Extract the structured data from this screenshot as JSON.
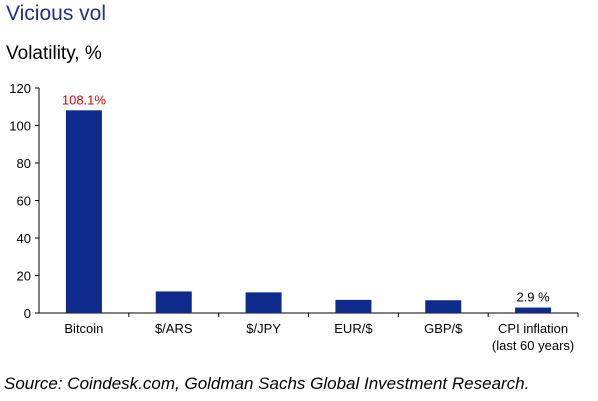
{
  "chart_data": {
    "type": "bar",
    "title": "Vicious vol",
    "ylabel": "Volatility, %",
    "categories": [
      [
        "Bitcoin"
      ],
      [
        "$/ARS"
      ],
      [
        "$/JPY"
      ],
      [
        "EUR/$"
      ],
      [
        "GBP/$"
      ],
      [
        "CPI inflation",
        "(last 60 years)"
      ]
    ],
    "values": [
      108.1,
      11.5,
      11,
      7,
      6.8,
      2.9
    ],
    "data_labels": [
      {
        "index": 0,
        "text": "108.1%",
        "color": "#e00000"
      },
      {
        "index": 5,
        "text": "2.9 %",
        "color": "#000000"
      }
    ],
    "ylim": [
      0,
      120
    ],
    "yticks": [
      0,
      20,
      40,
      60,
      80,
      100,
      120
    ],
    "grid": false,
    "bar_color": "#0d2a8c"
  },
  "source": "Source: Coindesk.com, Goldman Sachs Global Investment Research."
}
